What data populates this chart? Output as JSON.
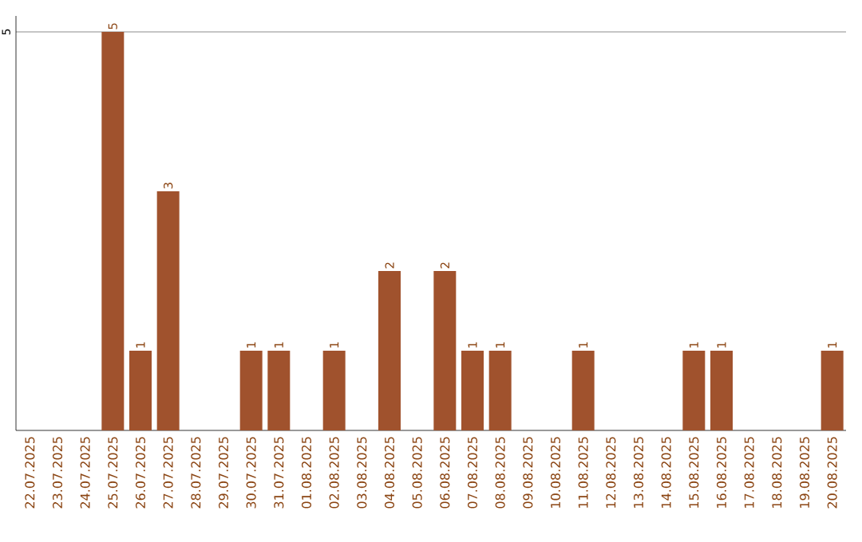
{
  "chart_data": {
    "type": "bar",
    "categories": [
      "22.07.2025",
      "23.07.2025",
      "24.07.2025",
      "25.07.2025",
      "26.07.2025",
      "27.07.2025",
      "28.07.2025",
      "29.07.2025",
      "30.07.2025",
      "31.07.2025",
      "01.08.2025",
      "02.08.2025",
      "03.08.2025",
      "04.08.2025",
      "05.08.2025",
      "06.08.2025",
      "07.08.2025",
      "08.08.2025",
      "09.08.2025",
      "10.08.2025",
      "11.08.2025",
      "12.08.2025",
      "13.08.2025",
      "14.08.2025",
      "15.08.2025",
      "16.08.2025",
      "17.08.2025",
      "18.08.2025",
      "19.08.2025",
      "20.08.2025"
    ],
    "values": [
      0,
      0,
      0,
      5,
      1,
      3,
      0,
      0,
      1,
      1,
      0,
      1,
      0,
      2,
      0,
      2,
      1,
      1,
      0,
      0,
      1,
      0,
      0,
      0,
      1,
      1,
      0,
      0,
      0,
      1
    ],
    "value_labels": [
      null,
      null,
      null,
      "5",
      "1",
      "3",
      null,
      null,
      "1",
      "1",
      null,
      "1",
      null,
      "2",
      null,
      "2",
      "1",
      "1",
      null,
      null,
      "1",
      null,
      null,
      null,
      "1",
      "1",
      null,
      null,
      null,
      "1"
    ],
    "color": "#a0522d",
    "ylim": [
      0,
      5.2
    ],
    "yticks": [
      5
    ],
    "grid": "y"
  }
}
